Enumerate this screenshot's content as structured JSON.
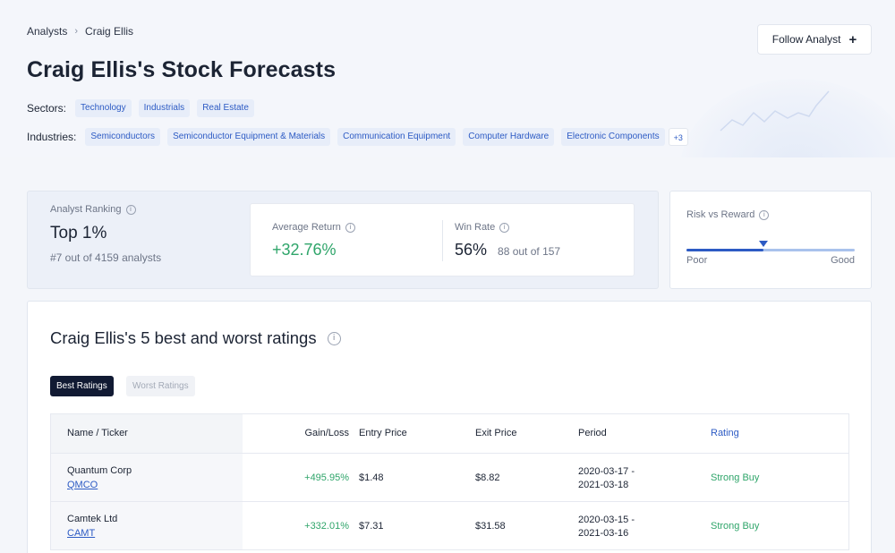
{
  "breadcrumb": {
    "parent": "Analysts",
    "separator": "›",
    "current": "Craig Ellis"
  },
  "follow_button": {
    "label": "Follow Analyst",
    "icon": "plus-icon",
    "glyph": "+"
  },
  "page_title": "Craig Ellis's Stock Forecasts",
  "sectors": {
    "label": "Sectors:",
    "tags": [
      "Technology",
      "Industrials",
      "Real Estate"
    ]
  },
  "industries": {
    "label": "Industries:",
    "tags": [
      "Semiconductors",
      "Semiconductor Equipment & Materials",
      "Communication Equipment",
      "Computer Hardware",
      "Electronic Components"
    ],
    "more": "+3"
  },
  "ranking": {
    "label": "Analyst Ranking",
    "value": "Top 1%",
    "sub": "#7 out of 4159 analysts"
  },
  "average_return": {
    "label": "Average Return",
    "value": "+32.76%"
  },
  "win_rate": {
    "label": "Win Rate",
    "value": "56%",
    "sub": "88 out of 157"
  },
  "risk_reward": {
    "label": "Risk vs Reward",
    "low": "Poor",
    "high": "Good",
    "level": 0.46
  },
  "ratings": {
    "title": "Craig Ellis's 5 best and worst ratings",
    "tabs": {
      "best": "Best Ratings",
      "worst": "Worst Ratings"
    },
    "columns": {
      "name": "Name / Ticker",
      "gain": "Gain/Loss",
      "entry": "Entry Price",
      "exit": "Exit Price",
      "period": "Period",
      "rating": "Rating"
    },
    "rows": [
      {
        "company": "Quantum Corp",
        "ticker": "QMCO",
        "gain": "+495.95%",
        "entry": "$1.48",
        "exit": "$8.82",
        "period_start": "2020-03-17 -",
        "period_end": "2021-03-18",
        "rating": "Strong Buy"
      },
      {
        "company": "Camtek Ltd",
        "ticker": "CAMT",
        "gain": "+332.01%",
        "entry": "$7.31",
        "exit": "$31.58",
        "period_start": "2020-03-15 -",
        "period_end": "2021-03-16",
        "rating": "Strong Buy"
      }
    ]
  },
  "colors": {
    "accent": "#2d5bc4",
    "positive": "#2fa56a",
    "dark": "#111a33"
  }
}
